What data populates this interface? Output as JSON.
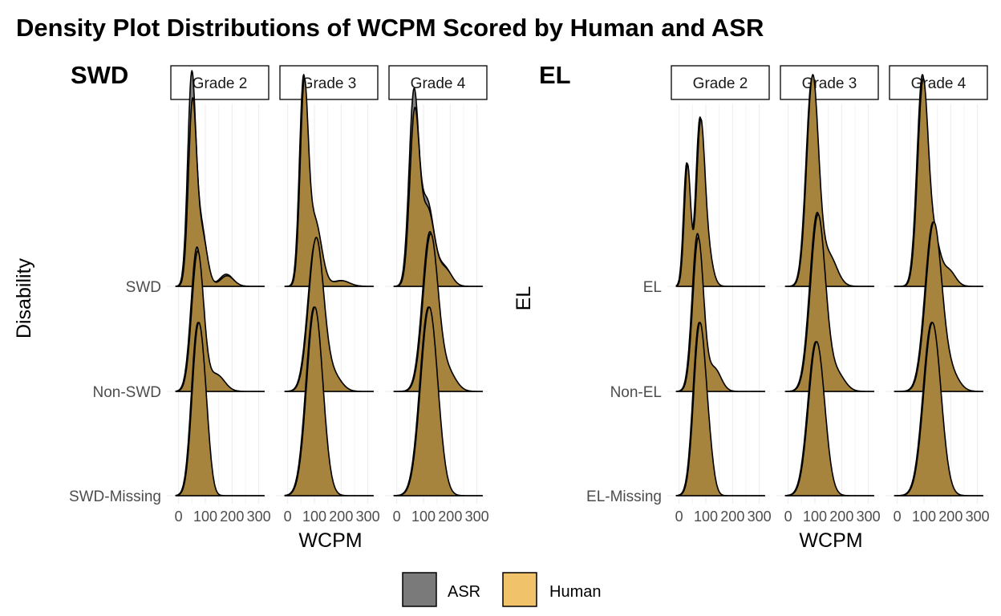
{
  "chart_data": {
    "type": "ridgeline-density",
    "title": "Density Plot Distributions of WCPM Scored by Human and ASR",
    "xlabel": "WCPM",
    "x_ticks": [
      0,
      100,
      200,
      300
    ],
    "x_tick_labels": [
      "0",
      "100",
      "200",
      "300"
    ],
    "xlim": [
      -20,
      340
    ],
    "legend": {
      "position": "bottom",
      "entries": [
        {
          "name": "ASR",
          "color": "#7a7a7a"
        },
        {
          "name": "Human",
          "color": "#f0c36a"
        }
      ]
    },
    "colors": {
      "overlap": "#a8843c",
      "outline": "#000000"
    },
    "panels": [
      {
        "group_label": "SWD",
        "ylabel": "Disability",
        "rows": [
          "SWD",
          "Non-SWD",
          "SWD-Missing"
        ],
        "facets": [
          {
            "label": "Grade 2",
            "rows": [
              {
                "components": [
                  [
                    1.0,
                    50,
                    15
                  ],
                  [
                    0.3,
                    85,
                    20
                  ],
                  [
                    0.06,
                    180,
                    25
                  ]
                ],
                "asr_peak": 1.12,
                "human_peak": 0.98
              },
              {
                "components": [
                  [
                    1.0,
                    70,
                    22
                  ],
                  [
                    0.12,
                    140,
                    30
                  ]
                ],
                "asr_peak": 0.75,
                "human_peak": 0.73
              },
              {
                "components": [
                  [
                    1.0,
                    70,
                    22
                  ],
                  [
                    0.3,
                    100,
                    18
                  ]
                ],
                "asr_peak": 0.9,
                "human_peak": 0.9
              }
            ]
          },
          {
            "label": "Grade 3",
            "rows": [
              {
                "components": [
                  [
                    1.0,
                    60,
                    15
                  ],
                  [
                    0.35,
                    100,
                    25
                  ],
                  [
                    0.03,
                    200,
                    30
                  ]
                ],
                "asr_peak": 1.1,
                "human_peak": 1.08
              },
              {
                "components": [
                  [
                    1.0,
                    105,
                    28
                  ],
                  [
                    0.1,
                    170,
                    30
                  ]
                ],
                "asr_peak": 0.78,
                "human_peak": 0.8
              },
              {
                "components": [
                  [
                    1.0,
                    100,
                    30
                  ]
                ],
                "asr_peak": 0.98,
                "human_peak": 0.98
              }
            ]
          },
          {
            "label": "Grade 4",
            "rows": [
              {
                "components": [
                  [
                    1.0,
                    65,
                    18
                  ],
                  [
                    0.45,
                    115,
                    25
                  ],
                  [
                    0.1,
                    180,
                    25
                  ]
                ],
                "asr_peak": 1.03,
                "human_peak": 0.93
              },
              {
                "components": [
                  [
                    1.0,
                    125,
                    28
                  ],
                  [
                    0.12,
                    190,
                    30
                  ]
                ],
                "asr_peak": 0.83,
                "human_peak": 0.82
              },
              {
                "components": [
                  [
                    1.0,
                    120,
                    32
                  ]
                ],
                "asr_peak": 0.98,
                "human_peak": 0.98
              }
            ]
          }
        ]
      },
      {
        "group_label": "EL",
        "ylabel": "EL",
        "rows": [
          "EL",
          "Non-EL",
          "EL-Missing"
        ],
        "facets": [
          {
            "label": "Grade 2",
            "rows": [
              {
                "components": [
                  [
                    0.85,
                    30,
                    12
                  ],
                  [
                    1.0,
                    78,
                    15
                  ],
                  [
                    0.3,
                    100,
                    20
                  ]
                ],
                "asr_peak": 0.88,
                "human_peak": 0.87
              },
              {
                "components": [
                  [
                    1.0,
                    70,
                    20
                  ],
                  [
                    0.15,
                    130,
                    25
                  ]
                ],
                "asr_peak": 0.82,
                "human_peak": 0.8
              },
              {
                "components": [
                  [
                    1.0,
                    75,
                    22
                  ],
                  [
                    0.2,
                    110,
                    18
                  ]
                ],
                "asr_peak": 0.9,
                "human_peak": 0.9
              }
            ]
          },
          {
            "label": "Grade 3",
            "rows": [
              {
                "components": [
                  [
                    1.0,
                    90,
                    22
                  ],
                  [
                    0.15,
                    150,
                    30
                  ]
                ],
                "asr_peak": 1.08,
                "human_peak": 1.1
              },
              {
                "components": [
                  [
                    1.0,
                    110,
                    28
                  ],
                  [
                    0.1,
                    180,
                    30
                  ]
                ],
                "asr_peak": 0.93,
                "human_peak": 0.92
              },
              {
                "components": [
                  [
                    1.0,
                    105,
                    30
                  ]
                ],
                "asr_peak": 0.8,
                "human_peak": 0.8
              }
            ]
          },
          {
            "label": "Grade 4",
            "rows": [
              {
                "components": [
                  [
                    1.0,
                    95,
                    20
                  ],
                  [
                    0.2,
                    140,
                    20
                  ],
                  [
                    0.08,
                    190,
                    25
                  ]
                ],
                "asr_peak": 1.1,
                "human_peak": 1.08
              },
              {
                "components": [
                  [
                    1.0,
                    135,
                    30
                  ],
                  [
                    0.1,
                    200,
                    30
                  ]
                ],
                "asr_peak": 0.88,
                "human_peak": 0.88
              },
              {
                "components": [
                  [
                    1.0,
                    130,
                    32
                  ]
                ],
                "asr_peak": 0.9,
                "human_peak": 0.9
              }
            ]
          }
        ]
      }
    ]
  }
}
